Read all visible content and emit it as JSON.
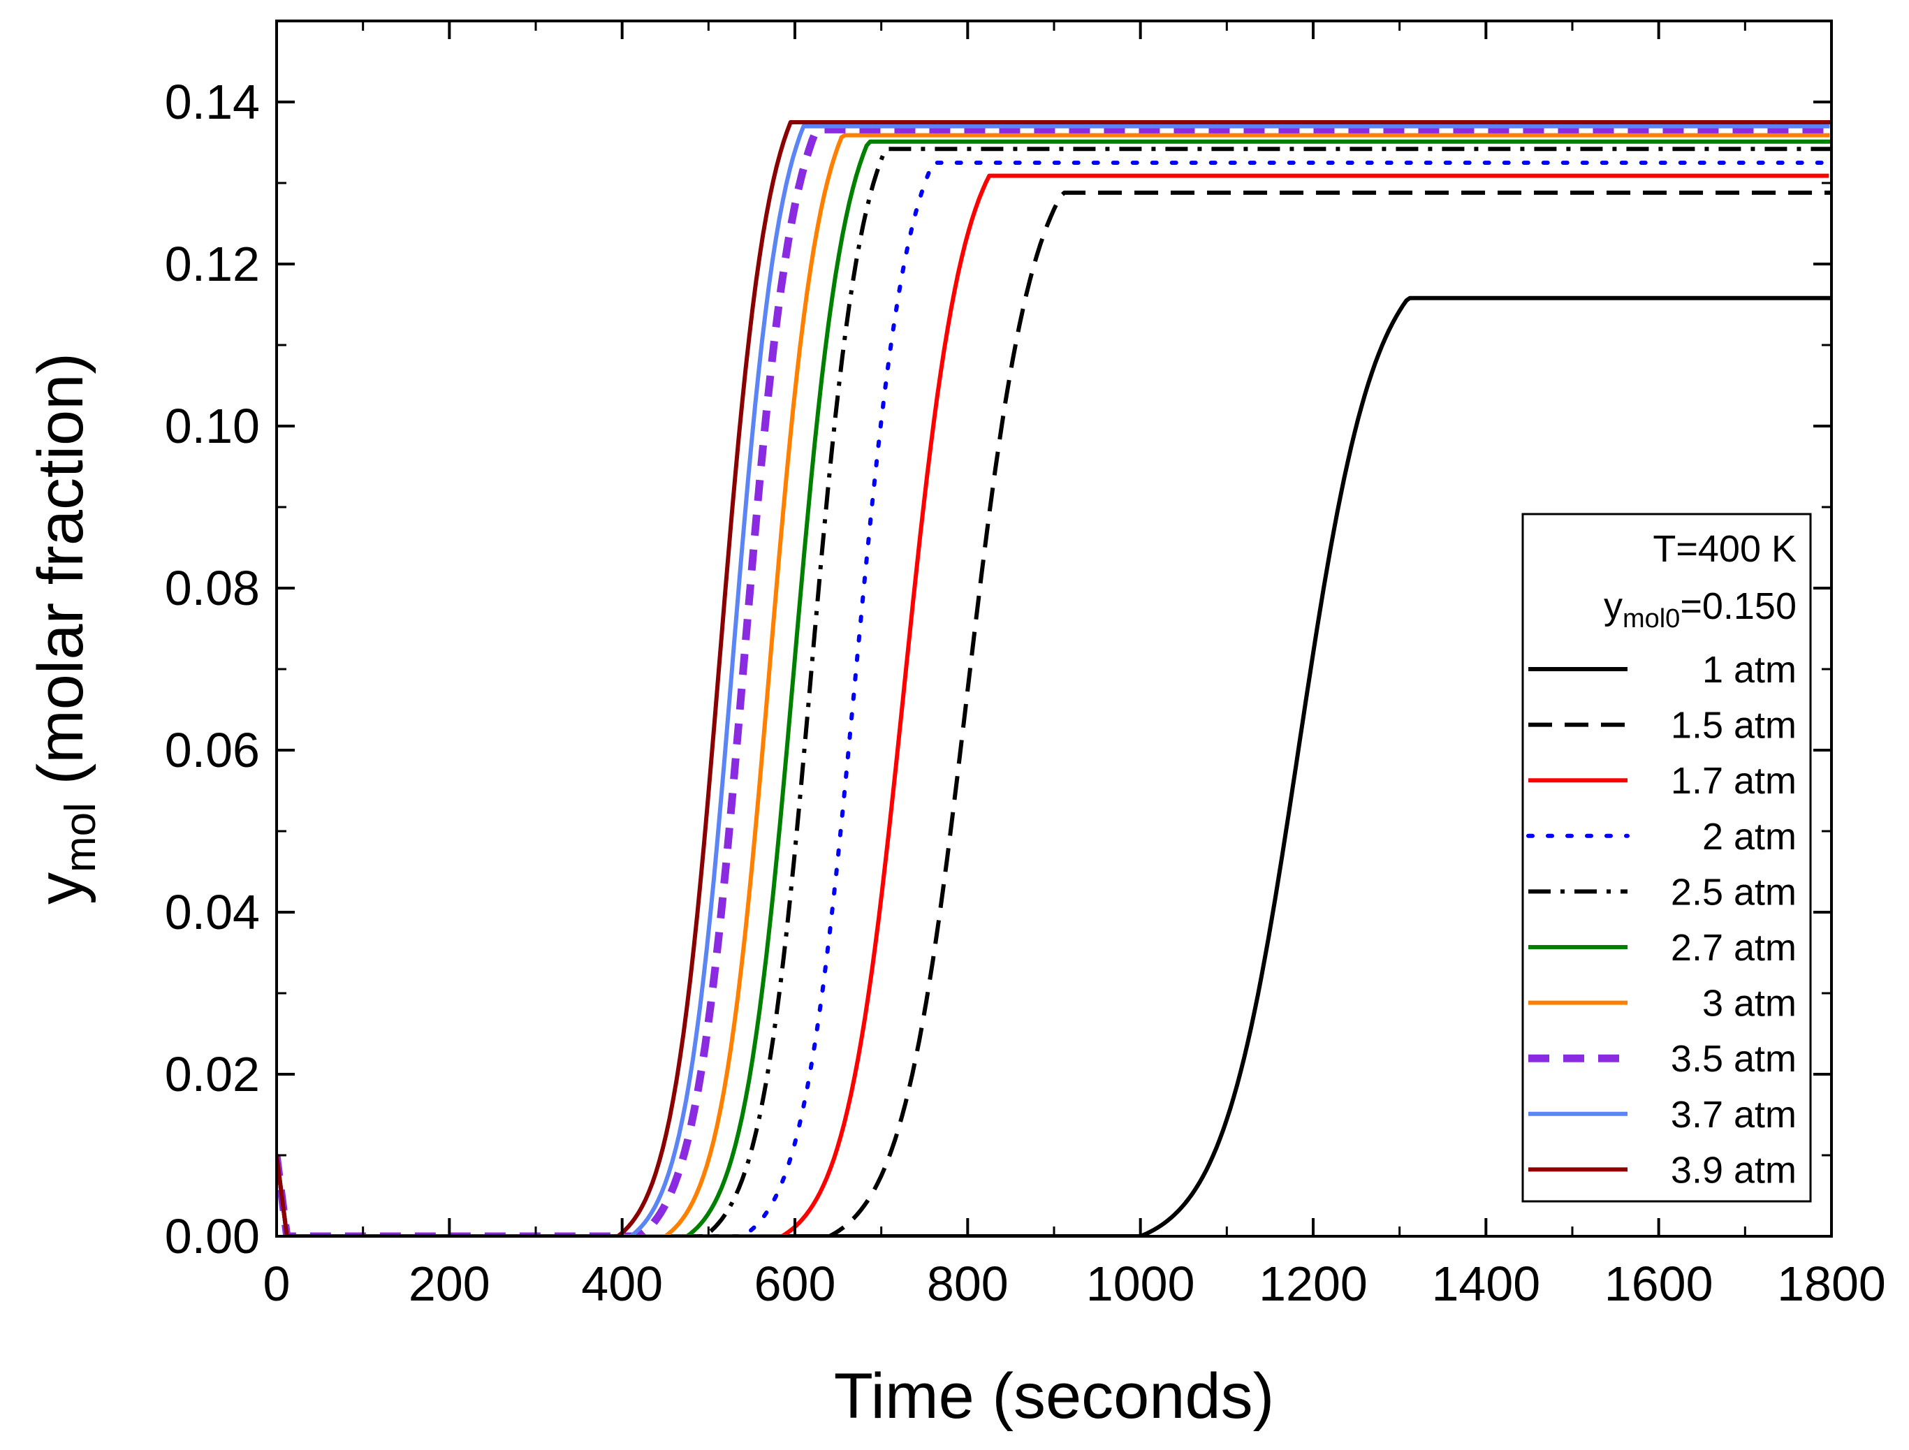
{
  "chart_data": {
    "type": "line",
    "title": "",
    "xlabel": "Time (seconds)",
    "ylabel": {
      "main": "y",
      "sub": "mol",
      "rest": " (molar fraction)"
    },
    "xlim": [
      0,
      1800
    ],
    "ylim": [
      0,
      0.15
    ],
    "xticks": [
      0,
      200,
      400,
      600,
      800,
      1000,
      1200,
      1400,
      1600,
      1800
    ],
    "xtick_labels": [
      "0",
      "200",
      "400",
      "600",
      "800",
      "1000",
      "1200",
      "1400",
      "1600",
      "1800"
    ],
    "yticks": [
      0,
      0.02,
      0.04,
      0.06,
      0.08,
      0.1,
      0.12,
      0.14
    ],
    "ytick_labels": [
      "0.00",
      "0.02",
      "0.04",
      "0.06",
      "0.08",
      "0.10",
      "0.12",
      "0.14"
    ],
    "grid": false,
    "legend_position": "bottom-right",
    "legend_header": {
      "line1": "T=400 K",
      "line2_main": "y",
      "line2_sub": "mol0",
      "line2_rest": "=0.150"
    },
    "series": [
      {
        "name": "1 atm",
        "color": "#000000",
        "style": "solid",
        "t0": 1000,
        "tau": 310,
        "plateau": 0.1158
      },
      {
        "name": "1.5 atm",
        "color": "#000000",
        "style": "dash",
        "t0": 640,
        "tau": 270,
        "plateau": 0.1288
      },
      {
        "name": "1.7 atm",
        "color": "#ff0000",
        "style": "solid",
        "t0": 585,
        "tau": 240,
        "plateau": 0.1309
      },
      {
        "name": "2 atm",
        "color": "#0000ff",
        "style": "dot",
        "t0": 540,
        "tau": 220,
        "plateau": 0.1325
      },
      {
        "name": "2.5 atm",
        "color": "#000000",
        "style": "dashdot",
        "t0": 495,
        "tau": 210,
        "plateau": 0.1342
      },
      {
        "name": "2.7 atm",
        "color": "#008000",
        "style": "solid",
        "t0": 475,
        "tau": 210,
        "plateau": 0.1351
      },
      {
        "name": "3 atm",
        "color": "#ff8000",
        "style": "solid",
        "t0": 450,
        "tau": 205,
        "plateau": 0.1359
      },
      {
        "name": "3.5 atm",
        "color": "#8a2be2",
        "style": "dashthick",
        "t0": 420,
        "tau": 205,
        "plateau": 0.1366
      },
      {
        "name": "3.7 atm",
        "color": "#5b84f5",
        "style": "solid",
        "t0": 410,
        "tau": 200,
        "plateau": 0.137
      },
      {
        "name": "3.9 atm",
        "color": "#8b0000",
        "style": "solid",
        "t0": 395,
        "tau": 200,
        "plateau": 0.1375
      }
    ],
    "initial_spike": {
      "t_end": 12,
      "value": 0.01
    }
  }
}
